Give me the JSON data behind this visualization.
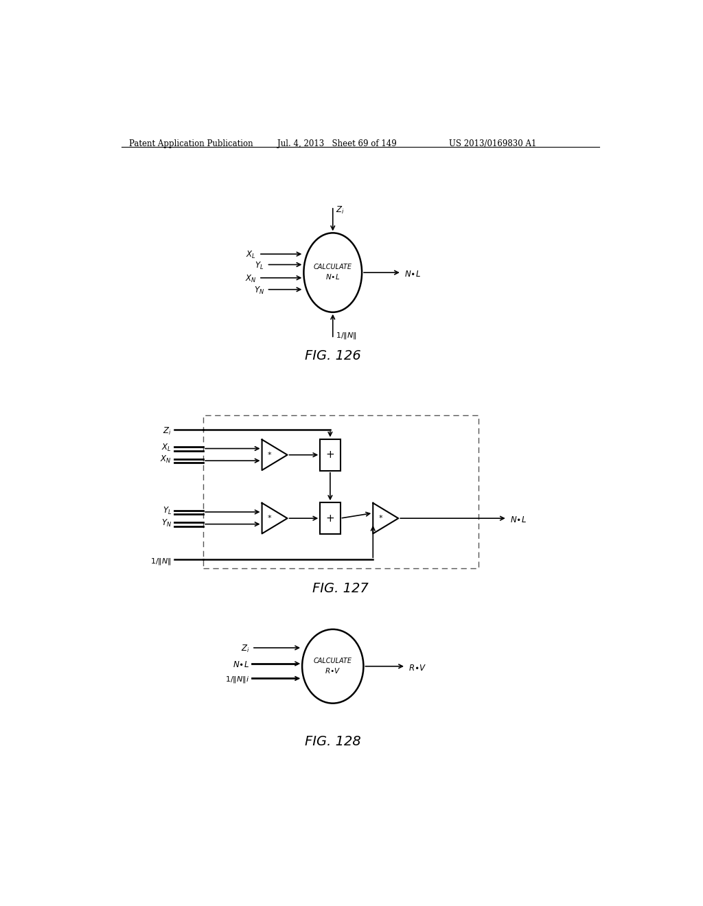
{
  "header_left": "Patent Application Publication",
  "header_mid": "Jul. 4, 2013   Sheet 69 of 149",
  "header_right": "US 2013/0169830 A1",
  "fig126_label": "FIG. 126",
  "fig127_label": "FIG. 127",
  "fig128_label": "FIG. 128",
  "background_color": "#ffffff",
  "line_color": "#000000"
}
